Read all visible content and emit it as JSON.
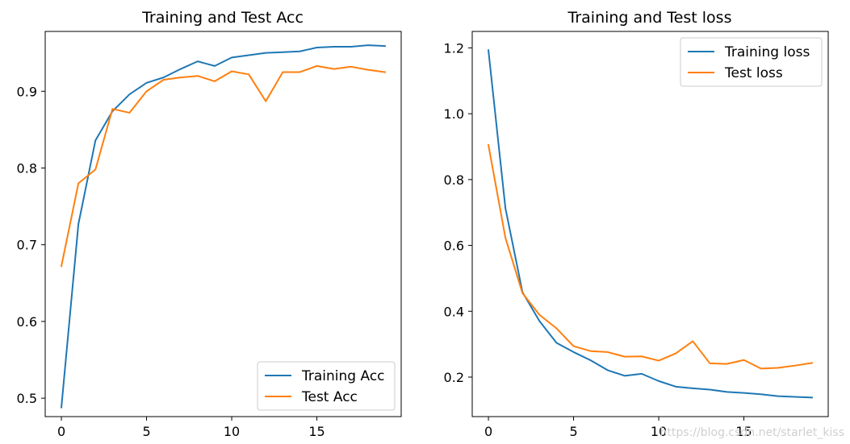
{
  "chart_data": [
    {
      "type": "line",
      "title": "Training and Test Acc",
      "xlabel": "",
      "ylabel": "",
      "xlim": [
        -0.95,
        19.95
      ],
      "ylim": [
        0.476,
        0.978
      ],
      "xticks": [
        0,
        5,
        10,
        15
      ],
      "xtick_labels": [
        "0",
        "5",
        "10",
        "15"
      ],
      "yticks": [
        0.5,
        0.6,
        0.7,
        0.8,
        0.9
      ],
      "ytick_labels": [
        "0.5",
        "0.6",
        "0.7",
        "0.8",
        "0.9"
      ],
      "grid": false,
      "legend_position": "lower-right",
      "x": [
        0,
        1,
        2,
        3,
        4,
        5,
        6,
        7,
        8,
        9,
        10,
        11,
        12,
        13,
        14,
        15,
        16,
        17,
        18,
        19
      ],
      "series": [
        {
          "name": "Training Acc",
          "color": "#1f77b4",
          "values": [
            0.488,
            0.727,
            0.836,
            0.874,
            0.896,
            0.911,
            0.918,
            0.929,
            0.939,
            0.933,
            0.944,
            0.947,
            0.95,
            0.951,
            0.952,
            0.957,
            0.958,
            0.958,
            0.96,
            0.959
          ]
        },
        {
          "name": "Test Acc",
          "color": "#ff7f0e",
          "values": [
            0.672,
            0.78,
            0.798,
            0.877,
            0.872,
            0.9,
            0.915,
            0.918,
            0.92,
            0.913,
            0.926,
            0.922,
            0.887,
            0.925,
            0.925,
            0.933,
            0.929,
            0.932,
            0.928,
            0.925
          ]
        }
      ]
    },
    {
      "type": "line",
      "title": "Training and Test loss",
      "xlabel": "",
      "ylabel": "",
      "xlim": [
        -0.95,
        19.95
      ],
      "ylim": [
        0.08,
        1.25
      ],
      "xticks": [
        0,
        5,
        10,
        15
      ],
      "xtick_labels": [
        "0",
        "5",
        "10",
        "15"
      ],
      "yticks": [
        0.2,
        0.4,
        0.6,
        0.8,
        1.0,
        1.2
      ],
      "ytick_labels": [
        "0.2",
        "0.4",
        "0.6",
        "0.8",
        "1.0",
        "1.2"
      ],
      "grid": false,
      "legend_position": "upper-right",
      "x": [
        0,
        1,
        2,
        3,
        4,
        5,
        6,
        7,
        8,
        9,
        10,
        11,
        12,
        13,
        14,
        15,
        16,
        17,
        18,
        19
      ],
      "series": [
        {
          "name": "Training loss",
          "color": "#1f77b4",
          "values": [
            1.193,
            0.713,
            0.458,
            0.37,
            0.304,
            0.276,
            0.251,
            0.221,
            0.204,
            0.21,
            0.188,
            0.171,
            0.166,
            0.162,
            0.155,
            0.152,
            0.148,
            0.142,
            0.14,
            0.138
          ]
        },
        {
          "name": "Test loss",
          "color": "#ff7f0e",
          "values": [
            0.905,
            0.623,
            0.455,
            0.389,
            0.348,
            0.294,
            0.279,
            0.276,
            0.262,
            0.263,
            0.25,
            0.272,
            0.309,
            0.242,
            0.24,
            0.252,
            0.226,
            0.228,
            0.235,
            0.243
          ]
        }
      ]
    }
  ],
  "watermark": "https://blog.csdn.net/starlet_kiss"
}
